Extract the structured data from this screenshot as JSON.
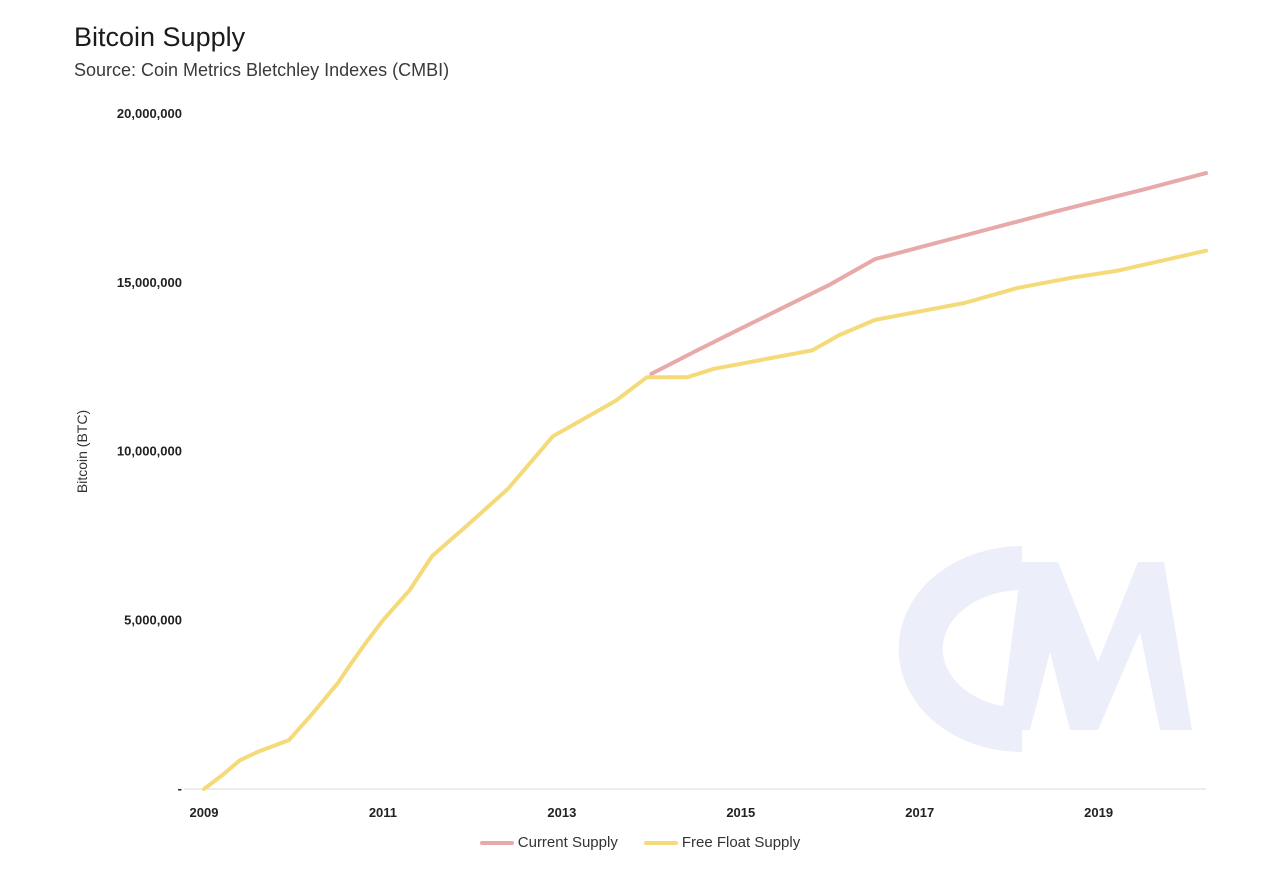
{
  "chart_data": {
    "type": "line",
    "title": "Bitcoin Supply",
    "subtitle": "Source: Coin Metrics Bletchley Indexes (CMBI)",
    "ylabel": "Bitcoin (BTC)",
    "xlabel": "",
    "ylim": [
      0,
      20000000
    ],
    "xlim": [
      2009.0,
      2020.2
    ],
    "grid": false,
    "legend_placement": "bottom-center",
    "y_ticks": [
      {
        "value": 0,
        "label": "-"
      },
      {
        "value": 5000000,
        "label": "5,000,000"
      },
      {
        "value": 10000000,
        "label": "10,000,000"
      },
      {
        "value": 15000000,
        "label": "15,000,000"
      },
      {
        "value": 20000000,
        "label": "20,000,000"
      }
    ],
    "x_ticks": [
      {
        "value": 2009,
        "label": "2009"
      },
      {
        "value": 2011,
        "label": "2011"
      },
      {
        "value": 2013,
        "label": "2013"
      },
      {
        "value": 2015,
        "label": "2015"
      },
      {
        "value": 2017,
        "label": "2017"
      },
      {
        "value": 2019,
        "label": "2019"
      }
    ],
    "watermark": "CM",
    "series": [
      {
        "name": "Current Supply",
        "color": "#e8a9a9",
        "points": [
          [
            2014.0,
            12300000
          ],
          [
            2014.5,
            12980000
          ],
          [
            2015.0,
            13640000
          ],
          [
            2015.5,
            14300000
          ],
          [
            2016.0,
            14950000
          ],
          [
            2016.5,
            15700000
          ],
          [
            2017.0,
            16050000
          ],
          [
            2017.5,
            16400000
          ],
          [
            2018.0,
            16750000
          ],
          [
            2018.5,
            17100000
          ],
          [
            2019.0,
            17430000
          ],
          [
            2019.5,
            17760000
          ],
          [
            2020.2,
            18250000
          ]
        ]
      },
      {
        "name": "Free Float Supply",
        "color": "#f5da7a",
        "points": [
          [
            2009.0,
            0
          ],
          [
            2009.2,
            400000
          ],
          [
            2009.4,
            850000
          ],
          [
            2009.6,
            1100000
          ],
          [
            2009.95,
            1450000
          ],
          [
            2010.2,
            2200000
          ],
          [
            2010.5,
            3150000
          ],
          [
            2010.6,
            3550000
          ],
          [
            2010.8,
            4300000
          ],
          [
            2011.0,
            5000000
          ],
          [
            2011.3,
            5900000
          ],
          [
            2011.55,
            6900000
          ],
          [
            2012.0,
            7950000
          ],
          [
            2012.4,
            8900000
          ],
          [
            2012.9,
            10450000
          ],
          [
            2013.2,
            10900000
          ],
          [
            2013.6,
            11500000
          ],
          [
            2013.95,
            12200000
          ],
          [
            2014.4,
            12200000
          ],
          [
            2014.7,
            12450000
          ],
          [
            2015.0,
            12600000
          ],
          [
            2015.4,
            12800000
          ],
          [
            2015.8,
            13000000
          ],
          [
            2016.1,
            13450000
          ],
          [
            2016.5,
            13900000
          ],
          [
            2016.8,
            14050000
          ],
          [
            2017.5,
            14400000
          ],
          [
            2018.1,
            14850000
          ],
          [
            2018.7,
            15150000
          ],
          [
            2019.2,
            15350000
          ],
          [
            2019.7,
            15650000
          ],
          [
            2020.2,
            15950000
          ]
        ]
      }
    ]
  }
}
